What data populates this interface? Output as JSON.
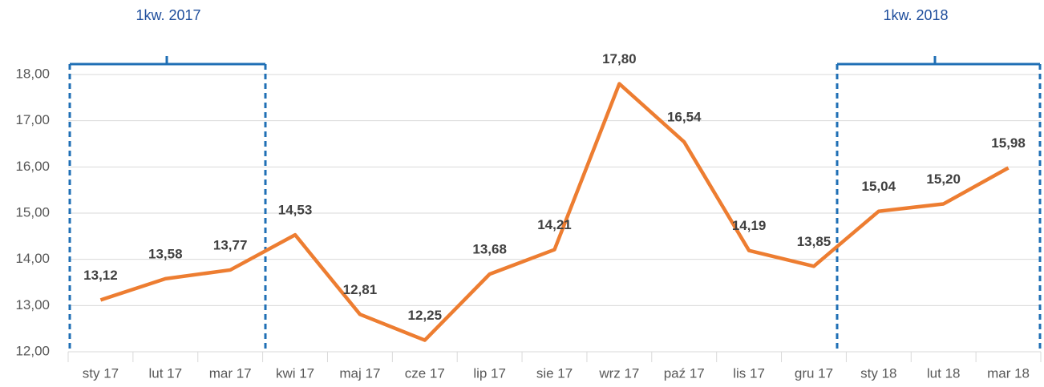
{
  "chart_data": {
    "type": "line",
    "categories": [
      "sty 17",
      "lut 17",
      "mar 17",
      "kwi 17",
      "maj 17",
      "cze 17",
      "lip 17",
      "sie 17",
      "wrz 17",
      "paź 17",
      "lis 17",
      "gru 17",
      "sty 18",
      "lut 18",
      "mar 18"
    ],
    "values": [
      13.12,
      13.58,
      13.77,
      14.53,
      12.81,
      12.25,
      13.68,
      14.21,
      17.8,
      16.54,
      14.19,
      13.85,
      15.04,
      15.2,
      15.98
    ],
    "value_labels": [
      "13,12",
      "13,58",
      "13,77",
      "14,53",
      "12,81",
      "12,25",
      "13,68",
      "14,21",
      "17,80",
      "16,54",
      "14,19",
      "13,85",
      "15,04",
      "15,20",
      "15,98"
    ],
    "color": "#ed7d31",
    "ylim": [
      12,
      18
    ],
    "yticks": [
      {
        "value": 12,
        "label": "12,00"
      },
      {
        "value": 13,
        "label": "13,00"
      },
      {
        "value": 14,
        "label": "14,00"
      },
      {
        "value": 15,
        "label": "15,00"
      },
      {
        "value": 16,
        "label": "16,00"
      },
      {
        "value": 17,
        "label": "17,00"
      },
      {
        "value": 18,
        "label": "18,00"
      }
    ],
    "grid": true,
    "annotations": [
      "1kw. 2017",
      "1kw. 2018"
    ]
  }
}
